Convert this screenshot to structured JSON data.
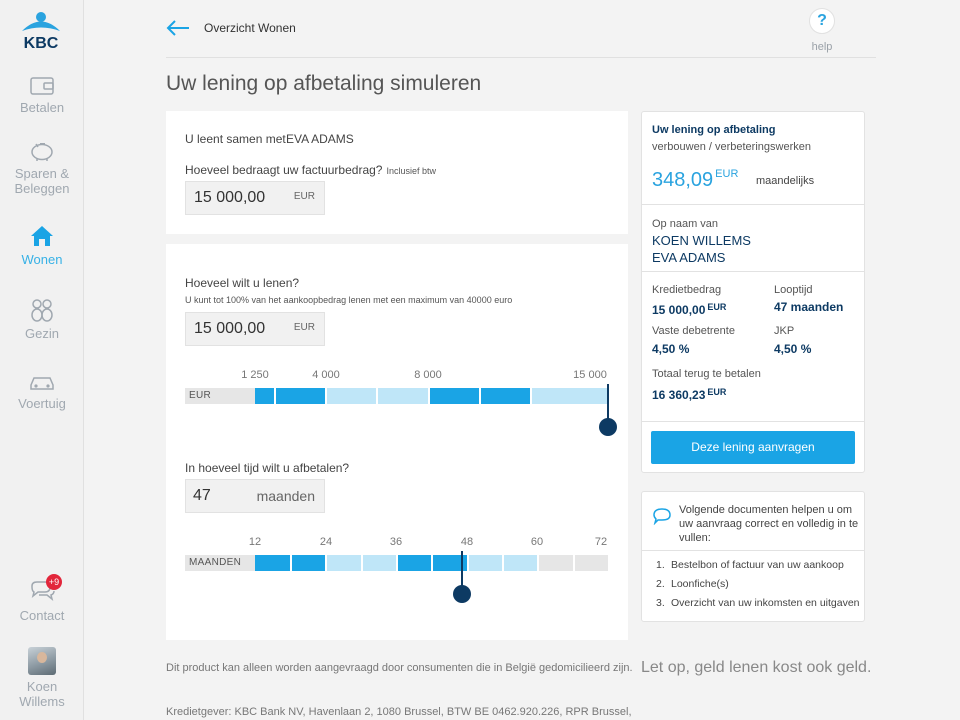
{
  "sidebar": {
    "logo_text": "KBC",
    "items": [
      {
        "label": "Betalen",
        "icon": "wallet-icon"
      },
      {
        "label": "Sparen & Beleggen",
        "icon": "piggy-bank-icon"
      },
      {
        "label": "Wonen",
        "icon": "house-icon"
      },
      {
        "label": "Gezin",
        "icon": "family-icon"
      },
      {
        "label": "Voertuig",
        "icon": "car-icon"
      }
    ],
    "contact": {
      "label": "Contact",
      "badge": "+9",
      "icon": "chat-bubbles-icon"
    },
    "user": {
      "label": "Koen Willems"
    }
  },
  "header": {
    "back_label": "Overzicht Wonen",
    "help_symbol": "?",
    "help_label": "help"
  },
  "page_title": "Uw lening op afbetaling simuleren",
  "form": {
    "co_borrower_label": "U leent samen met",
    "co_borrower_name": "EVA ADAMS",
    "invoice_question": "Hoeveel bedraagt uw factuurbedrag?",
    "invoice_hint": "Inclusief btw",
    "invoice_value": "15 000,00",
    "invoice_unit": "EUR",
    "borrow_question": "Hoeveel wilt u lenen?",
    "borrow_note": "U kunt tot 100% van het aankoopbedrag lenen met een maximum van 40000 euro",
    "borrow_value": "15 000,00",
    "borrow_unit": "EUR",
    "amount_slider": {
      "unit": "EUR",
      "ticks": [
        "1 250",
        "4 000",
        "8 000",
        "15 000"
      ],
      "value_fraction": 1.0
    },
    "duration_question": "In hoeveel tijd wilt u afbetalen?",
    "duration_value": "47",
    "duration_unit": "maanden",
    "duration_slider": {
      "unit": "MAANDEN",
      "ticks": [
        "12",
        "24",
        "36",
        "48",
        "60",
        "72"
      ],
      "value_months": 47
    }
  },
  "summary": {
    "title": "Uw lening op afbetaling",
    "subtitle": "verbouwen / verbeteringswerken",
    "monthly_amount": "348,09",
    "monthly_currency": "EUR",
    "monthly_label": "maandelijks",
    "holders_label": "Op naam van",
    "holders": [
      "KOEN WILLEMS",
      "EVA ADAMS"
    ],
    "credit_label": "Kredietbedrag",
    "credit_value": "15 000,00",
    "credit_currency": "EUR",
    "term_label": "Looptijd",
    "term_value": "47 maanden",
    "rate_label": "Vaste debetrente",
    "rate_value": "4,50 %",
    "jkp_label": "JKP",
    "jkp_value": "4,50 %",
    "total_label": "Totaal terug te betalen",
    "total_value": "16 360,23",
    "total_currency": "EUR",
    "apply_button": "Deze lening aanvragen"
  },
  "documents": {
    "intro": "Volgende documenten helpen u om uw aanvraag correct en volledig in te vullen:",
    "items": [
      {
        "num": "1.",
        "text": "Bestelbon of factuur van uw aankoop"
      },
      {
        "num": "2.",
        "text": "Loonfiche(s)"
      },
      {
        "num": "3.",
        "text": "Overzicht van uw inkomsten en uitgaven"
      }
    ]
  },
  "footer": {
    "consumer_note": "Dit product kan alleen worden aangevraagd door consumenten die in België gedomicilieerd zijn.",
    "lender": "Kredietgever: KBC Bank NV, Havenlaan 2, 1080 Brussel, BTW BE 0462.920.226, RPR Brussel,",
    "warning": "Let op, geld lenen kost ook geld."
  },
  "colors": {
    "accent": "#1aa4e5",
    "navy": "#0d3a63",
    "slider_light": "#bfe6f8",
    "badge": "#e2263b"
  }
}
